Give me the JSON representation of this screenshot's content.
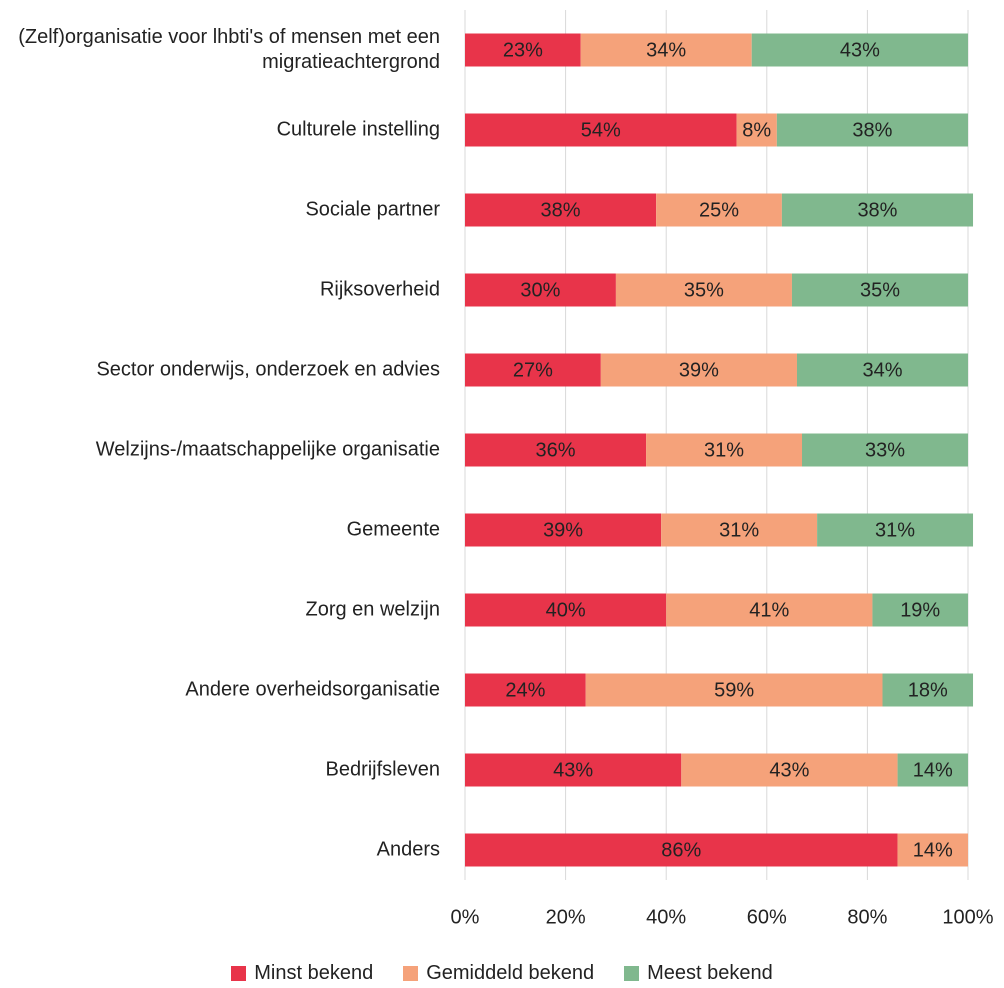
{
  "chart_data": {
    "type": "stacked-bar-horizontal",
    "categories": [
      "(Zelf)organisatie voor lhbti's of mensen met een migratieachtergrond",
      "Culturele instelling",
      "Sociale partner",
      "Rijksoverheid",
      "Sector onderwijs, onderzoek en advies",
      "Welzijns-/maatschappelijke organisatie",
      "Gemeente",
      "Zorg en welzijn",
      "Andere overheidsorganisatie",
      "Bedrijfsleven",
      "Anders"
    ],
    "series": [
      {
        "name": "Minst bekend",
        "color": "#e8344a",
        "values": [
          23,
          54,
          38,
          30,
          27,
          36,
          39,
          40,
          24,
          43,
          86
        ],
        "value_labels": [
          "23%",
          "54%",
          "38%",
          "30%",
          "27%",
          "36%",
          "39%",
          "40%",
          "24%",
          "43%",
          "86%"
        ]
      },
      {
        "name": "Gemiddeld bekend",
        "color": "#f5a27a",
        "values": [
          34,
          8,
          25,
          35,
          39,
          31,
          31,
          41,
          59,
          43,
          14
        ],
        "value_labels": [
          "34%",
          "8%",
          "25%",
          "35%",
          "39%",
          "31%",
          "31%",
          "41%",
          "59%",
          "43%",
          "14%"
        ]
      },
      {
        "name": "Meest bekend",
        "color": "#80b88e",
        "values": [
          43,
          38,
          38,
          35,
          34,
          33,
          31,
          19,
          18,
          14,
          null
        ],
        "value_labels": [
          "43%",
          "38%",
          "38%",
          "35%",
          "34%",
          "33%",
          "31%",
          "19%",
          "18%",
          "14%",
          null
        ]
      }
    ],
    "xlim": [
      0,
      100
    ],
    "xticks": [
      {
        "value": 0,
        "label": "0%"
      },
      {
        "value": 20,
        "label": "20%"
      },
      {
        "value": 40,
        "label": "40%"
      },
      {
        "value": 60,
        "label": "60%"
      },
      {
        "value": 80,
        "label": "80%"
      },
      {
        "value": 100,
        "label": "100%"
      }
    ],
    "grid": true,
    "legend": "bottom"
  }
}
